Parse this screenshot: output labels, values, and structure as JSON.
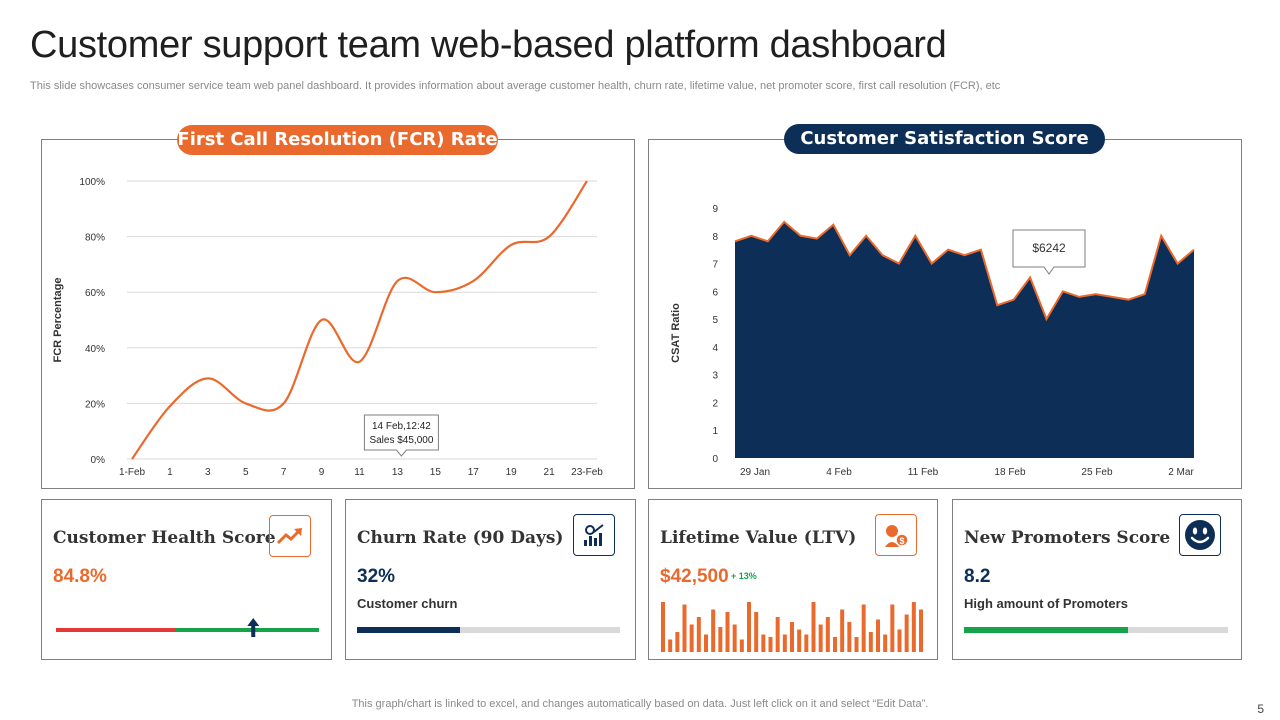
{
  "header": {
    "title": "Customer support team web-based platform dashboard",
    "subtitle": "This slide showcases consumer service team web panel dashboard. It provides information about average customer health, churn rate, lifetime value, net promoter score, first call resolution (FCR), etc"
  },
  "colors": {
    "orange": "#ea6a2e",
    "navy": "#0d2e57",
    "green": "#17a34a",
    "red": "#e53935",
    "gray": "#d9d9d9"
  },
  "chart_data": [
    {
      "type": "line",
      "title": "First Call Resolution (FCR) Rate",
      "ylabel": "FCR Percentage",
      "xlabel": "",
      "x_tick_labels": [
        "1-Feb",
        "1",
        "3",
        "5",
        "7",
        "9",
        "11",
        "13",
        "15",
        "17",
        "19",
        "21",
        "23-Feb"
      ],
      "y_tick_labels": [
        "0%",
        "20%",
        "40%",
        "60%",
        "80%",
        "100%"
      ],
      "ylim": [
        0,
        100
      ],
      "grid": true,
      "series": [
        {
          "values": [
            0,
            19,
            29,
            20,
            20,
            50,
            35,
            64,
            60,
            64,
            77,
            80,
            100
          ]
        }
      ],
      "tooltip": {
        "line1": "14 Feb,12:42",
        "line2": "Sales $45,000"
      }
    },
    {
      "type": "area",
      "title": "Customer Satisfaction Score",
      "ylabel": "CSAT Ratio",
      "xlabel": "",
      "x_tick_labels": [
        "29 Jan",
        "4 Feb",
        "11 Feb",
        "18 Feb",
        "25 Feb",
        "2 Mar"
      ],
      "y_tick_labels": [
        "0",
        "1",
        "2",
        "3",
        "4",
        "5",
        "6",
        "7",
        "8",
        "9"
      ],
      "ylim": [
        0,
        9
      ],
      "grid": false,
      "series": [
        {
          "values": [
            7.8,
            8.0,
            7.8,
            8.5,
            8.0,
            7.9,
            8.4,
            7.3,
            8.0,
            7.3,
            7.0,
            8.0,
            7.0,
            7.5,
            7.3,
            7.5,
            5.5,
            5.7,
            6.5,
            5.0,
            6.0,
            5.8,
            5.9,
            5.8,
            5.7,
            5.9,
            8.0,
            7.0,
            7.5
          ]
        }
      ],
      "callout": "$6242"
    }
  ],
  "cards": [
    {
      "title": "Customer Health Score",
      "value": "84.8%",
      "icon": "trending-up-icon",
      "indicator": {
        "type": "bipolar-bar",
        "marker_fraction": 0.75
      }
    },
    {
      "title": "Churn Rate (90 Days)",
      "value": "32%",
      "sub": "Customer churn",
      "icon": "analytics-chart-icon",
      "progress": 0.39
    },
    {
      "title": "Lifetime Value (LTV)",
      "value": "$42,500",
      "delta": "+ 13%",
      "icon": "customer-money-icon",
      "mini_bars": [
        1.0,
        0.25,
        0.4,
        0.95,
        0.55,
        0.7,
        0.35,
        0.85,
        0.5,
        0.8,
        0.55,
        0.25,
        1.0,
        0.8,
        0.35,
        0.3,
        0.7,
        0.35,
        0.6,
        0.45,
        0.35,
        1.0,
        0.55,
        0.7,
        0.3,
        0.85,
        0.6,
        0.3,
        0.95,
        0.4,
        0.65,
        0.35,
        0.95,
        0.45,
        0.75,
        1.0,
        0.85
      ]
    },
    {
      "title": "New Promoters Score",
      "value": "8.2",
      "sub": "High amount of Promoters",
      "icon": "smiley-face-icon",
      "progress": 0.62
    }
  ],
  "footer": {
    "note": "This graph/chart is linked to excel, and changes automatically based on data. Just left click on it and select “Edit Data”.",
    "page": "5"
  }
}
